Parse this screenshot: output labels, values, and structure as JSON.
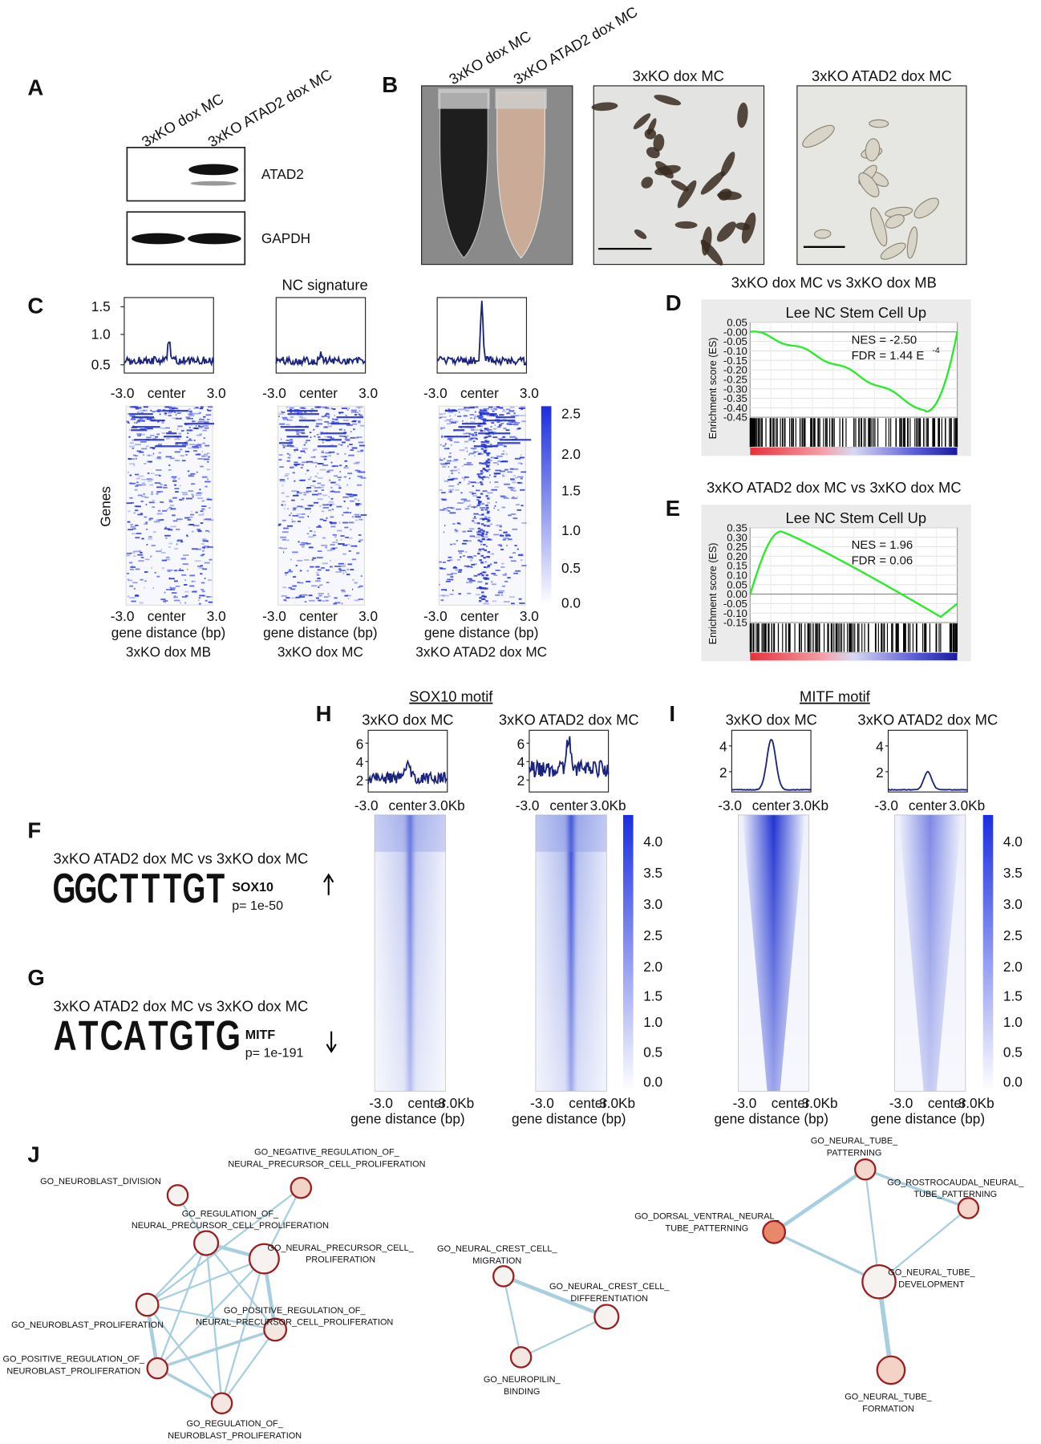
{
  "panels": {
    "A": {
      "label": "A",
      "lanes": [
        "3xKO dox MC",
        "3xKO ATAD2 dox MC"
      ],
      "blots": [
        "ATAD2",
        "GAPDH"
      ]
    },
    "B": {
      "label": "B",
      "tubes": [
        "3xKO dox MC",
        "3xKO ATAD2 dox MC"
      ],
      "images": [
        "3xKO dox MC",
        "3xKO ATAD2 dox MC"
      ]
    },
    "C": {
      "label": "C",
      "title": "NC signature",
      "profile_yticks": [
        "1.5",
        "1.0",
        "0.5"
      ],
      "xticks": [
        "-3.0",
        "center",
        "3.0"
      ],
      "y_label": "Genes",
      "x_label": "gene distance (bp)",
      "samples": [
        "3xKO dox MB",
        "3xKO dox MC",
        "3xKO ATAD2 dox MC"
      ],
      "colorbar_ticks": [
        "2.5",
        "2.0",
        "1.5",
        "1.0",
        "0.5",
        "0.0"
      ]
    },
    "D": {
      "label": "D",
      "title": "3xKO dox MC vs 3xKO dox MB",
      "gene_set": "Lee NC Stem Cell Up",
      "y_label": "Enrichment score (ES)",
      "yticks": [
        "0.05",
        "-0.00",
        "-0.05",
        "-0.10",
        "-0.15",
        "-0.20",
        "-0.25",
        "-0.30",
        "-0.35",
        "-0.40",
        "-0.45"
      ],
      "nes": "NES = -2.50",
      "fdr": "FDR = 1.44 E",
      "fdr_exp": "-4"
    },
    "E": {
      "label": "E",
      "title": "3xKO ATAD2 dox MC vs 3xKO dox MC",
      "gene_set": "Lee NC Stem Cell Up",
      "y_label": "Enrichment score (ES)",
      "yticks": [
        "0.35",
        "0.30",
        "0.25",
        "0.20",
        "0.15",
        "0.10",
        "0.05",
        "0.00",
        "-0.05",
        "-0.10",
        "-0.15"
      ],
      "nes": "NES = 1.96",
      "fdr": "FDR = 0.06"
    },
    "F": {
      "label": "F",
      "comparison": "3xKO ATAD2 dox MC vs 3xKO dox MC",
      "motif_letters": [
        "G",
        "G",
        "C",
        "T",
        "T",
        "T",
        "G",
        "T"
      ],
      "motif_name": "SOX10",
      "p": "p= 1e-50"
    },
    "G": {
      "label": "G",
      "comparison": "3xKO ATAD2 dox MC vs 3xKO dox MC",
      "motif_letters": [
        "A",
        "T",
        "C",
        "A",
        "T",
        "G",
        "T",
        "G"
      ],
      "motif_name": "MITF",
      "p": "p= 1e-191"
    },
    "H": {
      "label": "H",
      "title": "SOX10 motif",
      "samples": [
        "3xKO dox MC",
        "3xKO ATAD2 dox MC"
      ],
      "profile_yticks": [
        "6",
        "4",
        "2"
      ],
      "xticks": [
        "-3.0",
        "center",
        "3.0Kb"
      ],
      "x_label": "gene distance (bp)",
      "colorbar_ticks": [
        "4.0",
        "3.5",
        "3.0",
        "2.5",
        "2.0",
        "1.5",
        "1.0",
        "0.5",
        "0.0"
      ]
    },
    "I": {
      "label": "I",
      "title": "MITF motif",
      "samples": [
        "3xKO dox MC",
        "3xKO ATAD2 dox MC"
      ],
      "profile_yticks": [
        "4",
        "2"
      ],
      "xticks": [
        "-3.0",
        "center",
        "3.0Kb"
      ],
      "x_label": "gene distance (bp)",
      "colorbar_ticks": [
        "4.0",
        "3.5",
        "3.0",
        "2.5",
        "2.0",
        "1.5",
        "1.0",
        "0.5",
        "0.0"
      ]
    },
    "J": {
      "label": "J",
      "nodes": [
        {
          "lines": [
            "GO_NEUROBLAST_DIVISION"
          ]
        },
        {
          "lines": [
            "GO_NEGATIVE_REGULATION_OF_",
            "NEURAL_PRECURSOR_CELL_PROLIFERATION"
          ]
        },
        {
          "lines": [
            "GO_REGULATION_OF_",
            "NEURAL_PRECURSOR_CELL_PROLIFERATION"
          ]
        },
        {
          "lines": [
            "GO_NEURAL_PRECURSOR_CELL_",
            "PROLIFERATION"
          ]
        },
        {
          "lines": [
            "GO_NEUROBLAST_PROLIFERATION"
          ]
        },
        {
          "lines": [
            "GO_POSITIVE_REGULATION_OF_",
            "NEURAL_PRECURSOR_CELL_PROLIFERATION"
          ]
        },
        {
          "lines": [
            "GO_POSITIVE_REGULATION_OF_",
            "NEUROBLAST_PROLIFERATION"
          ]
        },
        {
          "lines": [
            "GO_REGULATION_OF_",
            "NEUROBLAST_PROLIFERATION"
          ]
        },
        {
          "lines": [
            "GO_NEURAL_CREST_CELL_",
            "MIGRATION"
          ]
        },
        {
          "lines": [
            "GO_NEURAL_CREST_CELL_",
            "DIFFERENTIATION"
          ]
        },
        {
          "lines": [
            "GO_NEUROPILIN_",
            "BINDING"
          ]
        },
        {
          "lines": [
            "GO_NEURAL_TUBE_",
            "PATTERNING"
          ]
        },
        {
          "lines": [
            "GO_ROSTROCAUDAL_NEURAL_",
            "TUBE_PATTERNING"
          ]
        },
        {
          "lines": [
            "GO_DORSAL_VENTRAL_NEURAL_",
            "TUBE_PATTERNING"
          ]
        },
        {
          "lines": [
            "GO_NEURAL_TUBE_",
            "DEVELOPMENT"
          ]
        },
        {
          "lines": [
            "GO_NEURAL_TUBE_",
            "FORMATION"
          ]
        }
      ]
    }
  }
}
